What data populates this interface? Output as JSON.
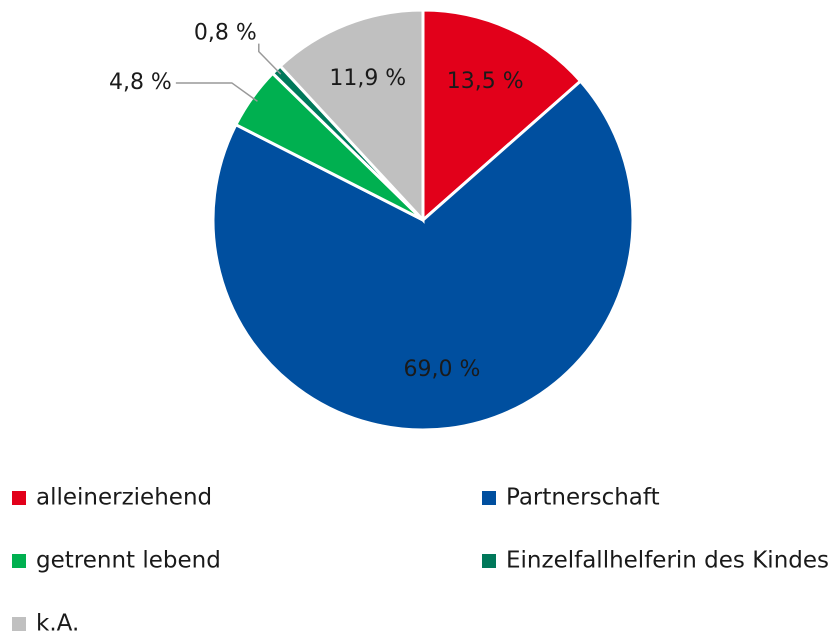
{
  "chart_data": {
    "type": "pie",
    "categories": [
      "alleinerziehend",
      "Partnerschaft",
      "getrennt lebend",
      "Einzelfallhelferin des Kindes",
      "k.A."
    ],
    "values": [
      13.5,
      69.0,
      4.8,
      0.8,
      11.9
    ],
    "value_labels": [
      "13,5 %",
      "69,0 %",
      "4,8 %",
      "0,8 %",
      "11,9 %"
    ],
    "colors": [
      "#e2001a",
      "#004f9f",
      "#00b050",
      "#00785a",
      "#c0c0c0"
    ],
    "legend": "bottom"
  }
}
